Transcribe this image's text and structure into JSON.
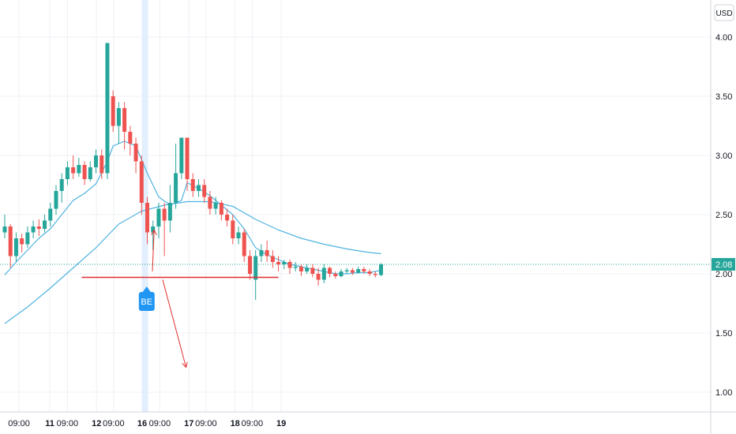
{
  "chart_data": {
    "type": "candlestick",
    "currency": "USD",
    "last_price_label": "2.08",
    "y_axis": {
      "min": 0.8,
      "max": 4.2,
      "ticks": [
        "4.00",
        "3.50",
        "3.00",
        "2.50",
        "2.00",
        "1.50",
        "1.00"
      ]
    },
    "x_axis": {
      "labels": [
        {
          "text": "09:00",
          "bold": false,
          "t": 2.5
        },
        {
          "text": "11",
          "bold": true,
          "t": 7.9
        },
        {
          "text": "09:00",
          "bold": false,
          "t": 11.0
        },
        {
          "text": "12",
          "bold": true,
          "t": 16.1
        },
        {
          "text": "09:00",
          "bold": false,
          "t": 19.1
        },
        {
          "text": "16",
          "bold": true,
          "t": 24.1
        },
        {
          "text": "09:00",
          "bold": false,
          "t": 27.2
        },
        {
          "text": "17",
          "bold": true,
          "t": 32.3
        },
        {
          "text": "09:00",
          "bold": false,
          "t": 35.3
        },
        {
          "text": "18",
          "bold": true,
          "t": 40.4
        },
        {
          "text": "09:00",
          "bold": false,
          "t": 43.4
        },
        {
          "text": "19",
          "bold": true,
          "t": 48.5
        }
      ]
    },
    "candles": [
      [
        2.35,
        2.4,
        2.5,
        2.3
      ],
      [
        2.4,
        2.15,
        2.42,
        2.05
      ],
      [
        2.15,
        2.3,
        2.35,
        2.1
      ],
      [
        2.3,
        2.25,
        2.34,
        2.18
      ],
      [
        2.25,
        2.35,
        2.4,
        2.22
      ],
      [
        2.35,
        2.4,
        2.45,
        2.3
      ],
      [
        2.4,
        2.38,
        2.46,
        2.32
      ],
      [
        2.38,
        2.45,
        2.5,
        2.35
      ],
      [
        2.45,
        2.55,
        2.6,
        2.4
      ],
      [
        2.55,
        2.7,
        2.75,
        2.5
      ],
      [
        2.7,
        2.8,
        2.85,
        2.6
      ],
      [
        2.8,
        2.9,
        2.95,
        2.75
      ],
      [
        2.9,
        2.85,
        3.0,
        2.8
      ],
      [
        2.85,
        2.92,
        2.98,
        2.82
      ],
      [
        2.92,
        2.8,
        2.95,
        2.75
      ],
      [
        2.8,
        2.9,
        2.95,
        2.78
      ],
      [
        2.9,
        3.0,
        3.05,
        2.85
      ],
      [
        3.0,
        2.85,
        3.05,
        2.8
      ],
      [
        2.85,
        3.95,
        3.95,
        2.8
      ],
      [
        3.5,
        3.25,
        3.55,
        3.2
      ],
      [
        3.25,
        3.4,
        3.45,
        3.1
      ],
      [
        3.4,
        3.2,
        3.45,
        3.05
      ],
      [
        3.2,
        3.1,
        3.25,
        3.0
      ],
      [
        3.1,
        2.95,
        3.15,
        2.85
      ],
      [
        2.95,
        2.6,
        3.0,
        2.5
      ],
      [
        2.6,
        2.35,
        2.65,
        2.25
      ],
      [
        2.35,
        2.4,
        2.45,
        2.2
      ],
      [
        2.4,
        2.55,
        2.6,
        2.3
      ],
      [
        2.55,
        2.45,
        2.6,
        2.15
      ],
      [
        2.45,
        2.6,
        2.75,
        2.35
      ],
      [
        2.6,
        2.85,
        3.1,
        2.55
      ],
      [
        2.85,
        3.15,
        3.15,
        2.8
      ],
      [
        3.15,
        2.8,
        3.15,
        2.7
      ],
      [
        2.8,
        2.7,
        2.85,
        2.65
      ],
      [
        2.7,
        2.75,
        2.8,
        2.65
      ],
      [
        2.75,
        2.65,
        2.8,
        2.6
      ],
      [
        2.65,
        2.55,
        2.7,
        2.5
      ],
      [
        2.55,
        2.6,
        2.65,
        2.5
      ],
      [
        2.6,
        2.5,
        2.62,
        2.45
      ],
      [
        2.5,
        2.45,
        2.55,
        2.4
      ],
      [
        2.45,
        2.3,
        2.5,
        2.25
      ],
      [
        2.3,
        2.35,
        2.4,
        2.25
      ],
      [
        2.35,
        2.15,
        2.38,
        2.1
      ],
      [
        2.15,
        2.0,
        2.2,
        1.95
      ],
      [
        1.95,
        2.15,
        2.2,
        1.78
      ],
      [
        2.15,
        2.2,
        2.25,
        2.1
      ],
      [
        2.2,
        2.15,
        2.28,
        2.1
      ],
      [
        2.15,
        2.1,
        2.2,
        2.05
      ],
      [
        2.1,
        2.08,
        2.15,
        2.02
      ],
      [
        2.08,
        2.1,
        2.12,
        2.04
      ],
      [
        2.1,
        2.05,
        2.12,
        2.0
      ],
      [
        2.05,
        2.06,
        2.1,
        2.02
      ],
      [
        2.06,
        2.02,
        2.08,
        1.98
      ],
      [
        2.02,
        2.05,
        2.08,
        2.0
      ],
      [
        2.05,
        2.0,
        2.08,
        1.97
      ],
      [
        2.0,
        1.95,
        2.05,
        1.9
      ],
      [
        1.95,
        2.05,
        2.08,
        1.92
      ],
      [
        2.05,
        2.0,
        2.06,
        1.97
      ],
      [
        2.0,
        1.98,
        2.02,
        1.96
      ],
      [
        1.98,
        2.02,
        2.04,
        1.97
      ],
      [
        2.02,
        2.03,
        2.05,
        2.0
      ],
      [
        2.03,
        2.01,
        2.05,
        1.99
      ],
      [
        2.01,
        2.04,
        2.06,
        2.0
      ],
      [
        2.04,
        2.02,
        2.06,
        2.0
      ],
      [
        2.02,
        2.0,
        2.04,
        1.98
      ],
      [
        2.0,
        1.99,
        2.02,
        1.97
      ],
      [
        1.99,
        2.08,
        2.09,
        1.98
      ]
    ],
    "series": [
      {
        "kind": "moving-average-fast",
        "color": "#4fb3e0",
        "points": [
          [
            0,
            1.99
          ],
          [
            2,
            2.1
          ],
          [
            4,
            2.2
          ],
          [
            6,
            2.3
          ],
          [
            8,
            2.38
          ],
          [
            10,
            2.5
          ],
          [
            12,
            2.62
          ],
          [
            14,
            2.68
          ],
          [
            16,
            2.76
          ],
          [
            18,
            2.95
          ],
          [
            19,
            3.08
          ],
          [
            21,
            3.12
          ],
          [
            23,
            3.08
          ],
          [
            25,
            2.85
          ],
          [
            27,
            2.65
          ],
          [
            29,
            2.58
          ],
          [
            31,
            2.62
          ],
          [
            32,
            2.77
          ],
          [
            34,
            2.72
          ],
          [
            36,
            2.66
          ],
          [
            38,
            2.58
          ],
          [
            40,
            2.5
          ],
          [
            42,
            2.38
          ],
          [
            44,
            2.22
          ],
          [
            46,
            2.16
          ],
          [
            48,
            2.12
          ],
          [
            50,
            2.08
          ],
          [
            52,
            2.06
          ],
          [
            54,
            2.04
          ],
          [
            56,
            2.02
          ],
          [
            58,
            2.0
          ],
          [
            60,
            2.0
          ],
          [
            62,
            2.01
          ],
          [
            64,
            2.01
          ],
          [
            66,
            2.03
          ]
        ]
      },
      {
        "kind": "moving-average-slow",
        "color": "#4fb3e0",
        "points": [
          [
            0,
            1.58
          ],
          [
            4,
            1.72
          ],
          [
            8,
            1.88
          ],
          [
            12,
            2.05
          ],
          [
            16,
            2.22
          ],
          [
            20,
            2.42
          ],
          [
            24,
            2.53
          ],
          [
            28,
            2.58
          ],
          [
            32,
            2.61
          ],
          [
            36,
            2.61
          ],
          [
            40,
            2.57
          ],
          [
            44,
            2.46
          ],
          [
            48,
            2.37
          ],
          [
            52,
            2.3
          ],
          [
            56,
            2.25
          ],
          [
            60,
            2.21
          ],
          [
            64,
            2.18
          ],
          [
            66,
            2.17
          ]
        ]
      }
    ],
    "support_line": {
      "value": 1.97,
      "t_start": 13.5,
      "t_end": 48,
      "color": "#e32e2e"
    },
    "current_price_line": {
      "value": 2.08,
      "color": "#26a69a"
    },
    "arrows": [
      {
        "name": "up-arrow",
        "t1": 25.9,
        "y1": 2.02,
        "t2": 26.2,
        "y2": 2.37,
        "color": "#e32e2e"
      },
      {
        "name": "down-arrow",
        "t1": 27.7,
        "y1": 1.95,
        "t2": 31.8,
        "y2": 1.21,
        "color": "#e32e2e"
      }
    ],
    "highlight_t": 24.6,
    "marker": {
      "text": "BE",
      "t": 24.9,
      "color": "#2196f3"
    },
    "colors": {
      "up": "#26a69a",
      "down": "#ef5350",
      "grid": "#eef0f4",
      "axis_line": "#d1d4dc"
    }
  }
}
